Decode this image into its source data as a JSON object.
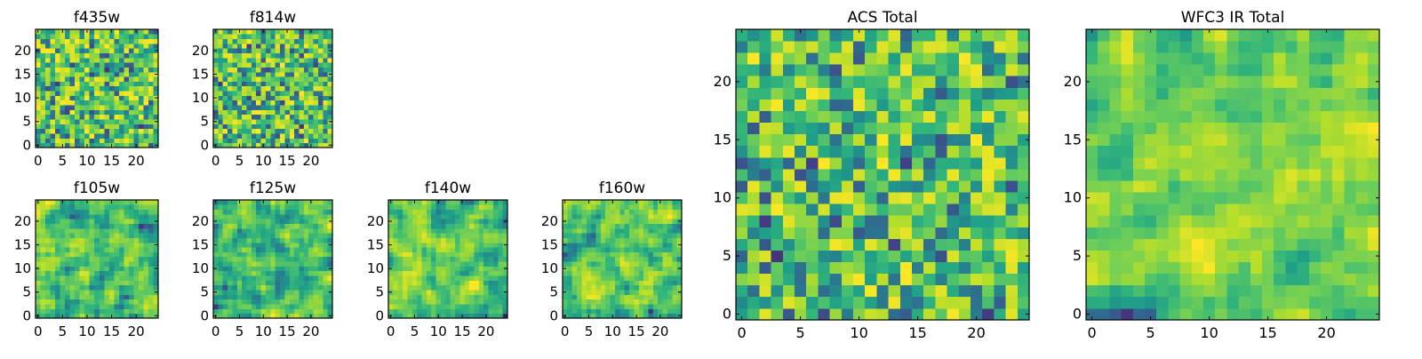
{
  "figure": {
    "panels": [
      {
        "id": "f435w",
        "title": "f435w",
        "xticks": [
          "0",
          "5",
          "10",
          "15",
          "20"
        ],
        "yticks": [
          "0",
          "5",
          "10",
          "15",
          "20"
        ]
      },
      {
        "id": "f814w",
        "title": "f814w",
        "xticks": [
          "0",
          "5",
          "10",
          "15",
          "20"
        ],
        "yticks": [
          "0",
          "5",
          "10",
          "15",
          "20"
        ]
      },
      {
        "id": "f105w",
        "title": "f105w",
        "xticks": [
          "0",
          "5",
          "10",
          "15",
          "20"
        ],
        "yticks": [
          "0",
          "5",
          "10",
          "15",
          "20"
        ]
      },
      {
        "id": "f125w",
        "title": "f125w",
        "xticks": [
          "0",
          "5",
          "10",
          "15",
          "20"
        ],
        "yticks": [
          "0",
          "5",
          "10",
          "15",
          "20"
        ]
      },
      {
        "id": "f140w",
        "title": "f140w",
        "xticks": [
          "0",
          "5",
          "10",
          "15",
          "20"
        ],
        "yticks": [
          "0",
          "5",
          "10",
          "15",
          "20"
        ]
      },
      {
        "id": "f160w",
        "title": "f160w",
        "xticks": [
          "0",
          "5",
          "10",
          "15",
          "20"
        ],
        "yticks": [
          "0",
          "5",
          "10",
          "15",
          "20"
        ]
      },
      {
        "id": "acs-total",
        "title": "ACS Total",
        "xticks": [
          "0",
          "5",
          "10",
          "15",
          "20"
        ],
        "yticks": [
          "0",
          "5",
          "10",
          "15",
          "20"
        ]
      },
      {
        "id": "wfc3-ir-total",
        "title": "WFC3 IR Total",
        "xticks": [
          "0",
          "5",
          "10",
          "15",
          "20"
        ],
        "yticks": [
          "0",
          "5",
          "10",
          "15",
          "20"
        ]
      }
    ]
  },
  "chart_data": [
    {
      "type": "heatmap",
      "title": "f435w",
      "grid_size": 25,
      "xlim": [
        -0.5,
        24.5
      ],
      "ylim": [
        -0.5,
        24.5
      ],
      "colormap": "viridis",
      "texture": "pixel-noise",
      "seed": 11,
      "grid": false
    },
    {
      "type": "heatmap",
      "title": "f814w",
      "grid_size": 25,
      "xlim": [
        -0.5,
        24.5
      ],
      "ylim": [
        -0.5,
        24.5
      ],
      "colormap": "viridis",
      "texture": "pixel-noise",
      "seed": 23,
      "grid": false
    },
    {
      "type": "heatmap",
      "title": "f105w",
      "grid_size": 25,
      "xlim": [
        -0.5,
        24.5
      ],
      "ylim": [
        -0.5,
        24.5
      ],
      "colormap": "viridis",
      "texture": "smooth-noise",
      "seed": 37,
      "grid": false
    },
    {
      "type": "heatmap",
      "title": "f125w",
      "grid_size": 25,
      "xlim": [
        -0.5,
        24.5
      ],
      "ylim": [
        -0.5,
        24.5
      ],
      "colormap": "viridis",
      "texture": "smooth-noise",
      "seed": 41,
      "grid": false
    },
    {
      "type": "heatmap",
      "title": "f140w",
      "grid_size": 25,
      "xlim": [
        -0.5,
        24.5
      ],
      "ylim": [
        -0.5,
        24.5
      ],
      "colormap": "viridis",
      "texture": "smooth-noise",
      "seed": 53,
      "grid": false
    },
    {
      "type": "heatmap",
      "title": "f160w",
      "grid_size": 25,
      "xlim": [
        -0.5,
        24.5
      ],
      "ylim": [
        -0.5,
        24.5
      ],
      "colormap": "viridis",
      "texture": "smooth-noise",
      "seed": 67,
      "grid": false
    },
    {
      "type": "heatmap",
      "title": "ACS Total",
      "grid_size": 25,
      "xlim": [
        -0.5,
        24.5
      ],
      "ylim": [
        -0.5,
        24.5
      ],
      "colormap": "viridis",
      "texture": "pixel-noise",
      "seed": 79,
      "grid": false
    },
    {
      "type": "heatmap",
      "title": "WFC3 IR Total",
      "grid_size": 25,
      "xlim": [
        -0.5,
        24.5
      ],
      "ylim": [
        -0.5,
        24.5
      ],
      "colormap": "viridis",
      "texture": "smooth-noise",
      "seed": 97,
      "grid": false
    }
  ],
  "colors": {
    "viridis": [
      "#440154",
      "#482878",
      "#3e4989",
      "#31688e",
      "#26828e",
      "#1f9e89",
      "#35b779",
      "#6ece58",
      "#b5de2b",
      "#fde725"
    ]
  }
}
